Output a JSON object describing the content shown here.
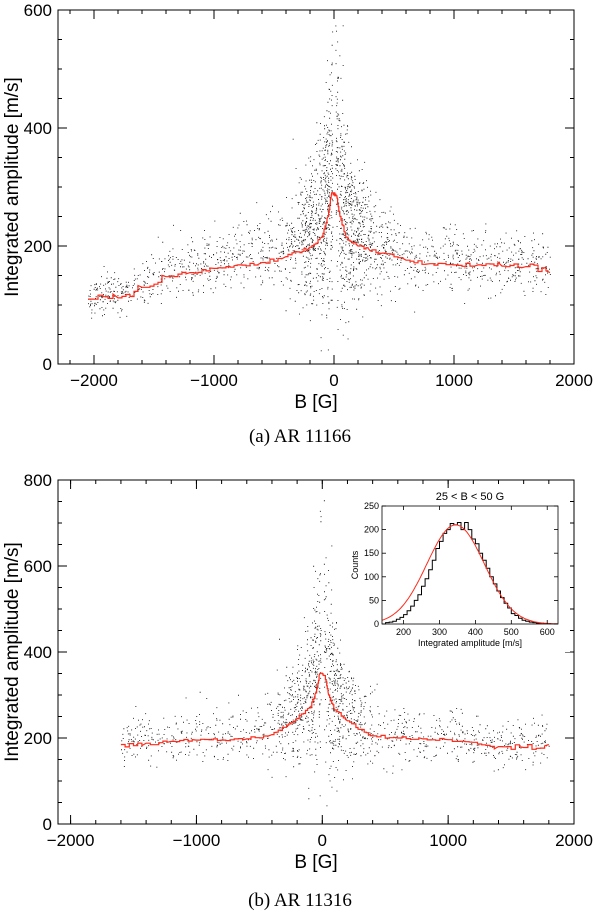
{
  "captions": {
    "a": "(a)  AR 11166",
    "b": "(b)  AR 11316"
  },
  "colors": {
    "points": "#000000",
    "median": "#ff2a1a",
    "frame": "#000000"
  },
  "chart_data": [
    {
      "type": "scatter",
      "id": "a",
      "title": "",
      "xlabel": "B [G]",
      "ylabel": "Integrated amplitude [m/s]",
      "xlim": [
        -2300,
        2000
      ],
      "ylim": [
        0,
        600
      ],
      "xticks": [
        -2000,
        -1000,
        0,
        1000,
        2000
      ],
      "xtick_labels": [
        "−2000",
        "−1000",
        "0",
        "1000",
        "2000"
      ],
      "yticks": [
        0,
        200,
        400,
        600
      ],
      "ytick_labels": [
        "0",
        "200",
        "400",
        "600"
      ],
      "scatter_extent": {
        "bmin": -2050,
        "bmax": 1800
      },
      "median_series": {
        "name": "binned median",
        "x": [
          -2050,
          -1800,
          -1600,
          -1400,
          -1200,
          -1000,
          -800,
          -600,
          -400,
          -300,
          -200,
          -100,
          -50,
          -20,
          20,
          50,
          100,
          200,
          300,
          400,
          600,
          800,
          1000,
          1200,
          1400,
          1600,
          1800
        ],
        "y": [
          110,
          112,
          130,
          148,
          155,
          162,
          168,
          172,
          182,
          190,
          198,
          215,
          250,
          290,
          285,
          250,
          215,
          200,
          192,
          188,
          176,
          170,
          168,
          168,
          166,
          165,
          155
        ]
      }
    },
    {
      "type": "scatter",
      "id": "b",
      "title": "",
      "xlabel": "B [G]",
      "ylabel": "Integrated amplitude [m/s]",
      "xlim": [
        -2100,
        2000
      ],
      "ylim": [
        0,
        800
      ],
      "xticks": [
        -2000,
        -1000,
        0,
        1000,
        2000
      ],
      "xtick_labels": [
        "−2000",
        "−1000",
        "0",
        "1000",
        "2000"
      ],
      "yticks": [
        0,
        200,
        400,
        600,
        800
      ],
      "ytick_labels": [
        "0",
        "200",
        "400",
        "600",
        "800"
      ],
      "scatter_extent": {
        "bmin": -1600,
        "bmax": 1800
      },
      "median_series": {
        "name": "binned median",
        "x": [
          -1600,
          -1400,
          -1200,
          -1000,
          -800,
          -600,
          -400,
          -300,
          -200,
          -100,
          -50,
          -20,
          20,
          50,
          100,
          200,
          300,
          400,
          600,
          800,
          1000,
          1200,
          1400,
          1600,
          1800
        ],
        "y": [
          185,
          188,
          192,
          195,
          195,
          198,
          208,
          225,
          245,
          270,
          305,
          350,
          345,
          300,
          265,
          240,
          220,
          205,
          200,
          198,
          196,
          190,
          180,
          178,
          185
        ]
      },
      "inset": {
        "type": "histogram",
        "title": "25 < B < 50 G",
        "xlabel": "Integrated amplitude [m/s]",
        "ylabel": "Counts",
        "xlim": [
          140,
          630
        ],
        "ylim": [
          0,
          250
        ],
        "xticks": [
          200,
          300,
          400,
          500,
          600
        ],
        "xtick_labels": [
          "200",
          "300",
          "400",
          "500",
          "600"
        ],
        "yticks": [
          0,
          50,
          100,
          150,
          200,
          250
        ],
        "ytick_labels": [
          "0",
          "50",
          "100",
          "150",
          "200",
          "250"
        ],
        "bins": [
          150,
          160,
          170,
          180,
          190,
          200,
          210,
          220,
          230,
          240,
          250,
          260,
          270,
          280,
          290,
          300,
          310,
          320,
          330,
          340,
          350,
          360,
          370,
          380,
          390,
          400,
          410,
          420,
          430,
          440,
          450,
          460,
          470,
          480,
          490,
          500,
          510,
          520,
          530,
          540,
          550,
          560,
          570,
          580,
          590,
          600
        ],
        "counts": [
          3,
          4,
          6,
          10,
          14,
          20,
          28,
          38,
          50,
          62,
          80,
          96,
          115,
          135,
          160,
          175,
          192,
          200,
          213,
          210,
          215,
          200,
          215,
          200,
          180,
          170,
          150,
          135,
          118,
          100,
          85,
          70,
          56,
          44,
          34,
          22,
          18,
          12,
          8,
          6,
          4,
          3,
          2,
          2,
          1,
          1
        ],
        "fit": {
          "name": "Gaussian fit",
          "amplitude": 210,
          "center": 345,
          "sigma": 80
        }
      }
    }
  ]
}
